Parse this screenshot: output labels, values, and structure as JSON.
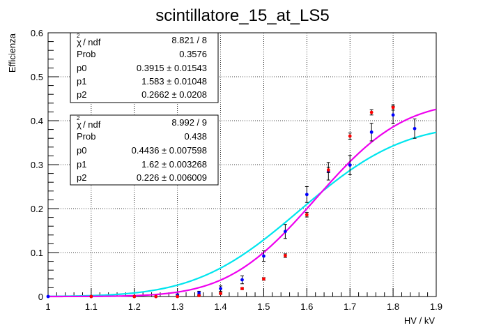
{
  "chart_data": {
    "type": "scatter",
    "title": "scintillatore_15_at_LS5",
    "xlabel": "HV / kV",
    "ylabel": "Efficienza",
    "xlim": [
      1.0,
      1.9
    ],
    "ylim": [
      0.0,
      0.6
    ],
    "grid": true,
    "x_ticks": [
      1,
      1.1,
      1.2,
      1.3,
      1.4,
      1.5,
      1.6,
      1.7,
      1.8,
      1.9
    ],
    "x_tick_labels": [
      "1",
      "1.1",
      "1.2",
      "1.3",
      "1.4",
      "1.5",
      "1.6",
      "1.7",
      "1.8",
      "1.9"
    ],
    "y_ticks": [
      0,
      0.1,
      0.2,
      0.3,
      0.4,
      0.5,
      0.6
    ],
    "y_tick_labels": [
      "0",
      "0.1",
      "0.2",
      "0.3",
      "0.4",
      "0.5",
      "0.6"
    ],
    "series": [
      {
        "name": "blue points",
        "marker_color": "#0000ff",
        "fit_color": "#00e5ee",
        "fit": {
          "p0": 0.3915,
          "p1": 1.583,
          "p2": 0.2662
        },
        "x": [
          1.0,
          1.1,
          1.2,
          1.25,
          1.3,
          1.35,
          1.4,
          1.45,
          1.5,
          1.55,
          1.6,
          1.65,
          1.7,
          1.75,
          1.8,
          1.85
        ],
        "y": [
          0.0,
          0.0,
          0.0,
          0.0,
          0.003,
          0.008,
          0.018,
          0.038,
          0.092,
          0.148,
          0.232,
          0.285,
          0.299,
          0.374,
          0.413,
          0.382
        ],
        "err": [
          0.0,
          0.0,
          0.0,
          0.0,
          0.003,
          0.004,
          0.006,
          0.009,
          0.012,
          0.016,
          0.018,
          0.02,
          0.022,
          0.02,
          0.02,
          0.022
        ]
      },
      {
        "name": "red points",
        "marker_color": "#ff0000",
        "fit_color": "#ee00ee",
        "fit": {
          "p0": 0.4436,
          "p1": 1.62,
          "p2": 0.226
        },
        "x": [
          1.1,
          1.2,
          1.25,
          1.3,
          1.35,
          1.4,
          1.45,
          1.5,
          1.55,
          1.6,
          1.65,
          1.7,
          1.75,
          1.8
        ],
        "y": [
          0.0,
          0.0,
          0.0,
          0.0,
          0.002,
          0.007,
          0.018,
          0.04,
          0.093,
          0.186,
          0.288,
          0.365,
          0.419,
          0.43
        ],
        "err": [
          0.0,
          0.0,
          0.0,
          0.0,
          0.001,
          0.002,
          0.002,
          0.003,
          0.004,
          0.005,
          0.006,
          0.007,
          0.006,
          0.006
        ]
      }
    ]
  },
  "stat_boxes": [
    {
      "rows": [
        {
          "label": "ndf",
          "value": "8.821 / 8"
        },
        {
          "label": "Prob",
          "value": "0.3576"
        },
        {
          "label": "p0",
          "value": "0.3915 ±  0.01543"
        },
        {
          "label": "p1",
          "value": "1.583 ±  0.01048"
        },
        {
          "label": "p2",
          "value": "0.2662 ±  0.0208"
        }
      ]
    },
    {
      "rows": [
        {
          "label": "ndf",
          "value": "8.992 / 9"
        },
        {
          "label": "Prob",
          "value": "0.438"
        },
        {
          "label": "p0",
          "value": "0.4436 ± 0.007598"
        },
        {
          "label": "p1",
          "value": "1.62 ± 0.003268"
        },
        {
          "label": "p2",
          "value": "0.226 ± 0.006009"
        }
      ]
    }
  ],
  "stat_chi_symbol": "χ",
  "stat_chi_sup": "2",
  "stat_chi_suffix": " / ndf"
}
